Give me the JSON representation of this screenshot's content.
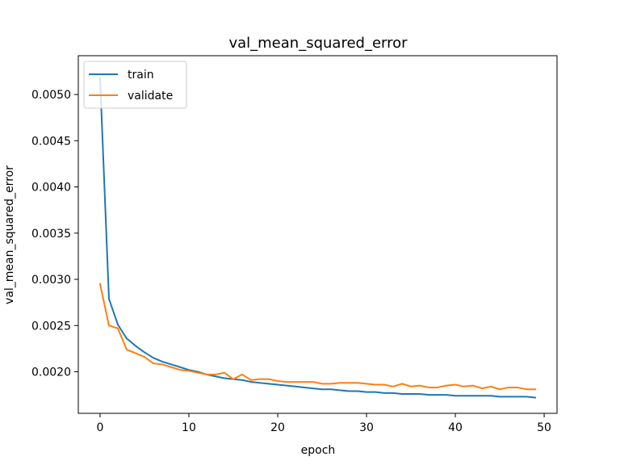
{
  "chart_data": {
    "type": "line",
    "title": "val_mean_squared_error",
    "xlabel": "epoch",
    "ylabel": "val_mean_squared_error",
    "xlim": [
      -2.45,
      51.45
    ],
    "ylim": [
      0.00155,
      0.00542
    ],
    "xticks": [
      0,
      10,
      20,
      30,
      40,
      50
    ],
    "yticks": [
      0.002,
      0.0025,
      0.003,
      0.0035,
      0.004,
      0.0045,
      0.005
    ],
    "ytick_labels": [
      "0.0020",
      "0.0025",
      "0.0030",
      "0.0035",
      "0.0040",
      "0.0045",
      "0.0050"
    ],
    "grid": false,
    "legend_position": "upper left",
    "x": [
      0,
      1,
      2,
      3,
      4,
      5,
      6,
      7,
      8,
      9,
      10,
      11,
      12,
      13,
      14,
      15,
      16,
      17,
      18,
      19,
      20,
      21,
      22,
      23,
      24,
      25,
      26,
      27,
      28,
      29,
      30,
      31,
      32,
      33,
      34,
      35,
      36,
      37,
      38,
      39,
      40,
      41,
      42,
      43,
      44,
      45,
      46,
      47,
      48,
      49
    ],
    "series": [
      {
        "name": "train",
        "color": "#1f77b4",
        "values": [
          0.00518,
          0.00279,
          0.00251,
          0.00236,
          0.00228,
          0.00221,
          0.00215,
          0.00211,
          0.00208,
          0.00205,
          0.00202,
          0.002,
          0.00197,
          0.00195,
          0.00193,
          0.00192,
          0.00191,
          0.00189,
          0.00188,
          0.00187,
          0.00186,
          0.00185,
          0.00184,
          0.00183,
          0.00182,
          0.00181,
          0.00181,
          0.0018,
          0.00179,
          0.00179,
          0.00178,
          0.00178,
          0.00177,
          0.00177,
          0.00176,
          0.00176,
          0.00176,
          0.00175,
          0.00175,
          0.00175,
          0.00174,
          0.00174,
          0.00174,
          0.00174,
          0.00174,
          0.00173,
          0.00173,
          0.00173,
          0.00173,
          0.00172
        ]
      },
      {
        "name": "validate",
        "color": "#ff7f0e",
        "values": [
          0.00295,
          0.0025,
          0.00247,
          0.00224,
          0.0022,
          0.00216,
          0.00209,
          0.00208,
          0.00205,
          0.00202,
          0.00201,
          0.00199,
          0.00197,
          0.00197,
          0.00199,
          0.00192,
          0.00197,
          0.00191,
          0.00192,
          0.00192,
          0.0019,
          0.00189,
          0.00189,
          0.00189,
          0.00189,
          0.00187,
          0.00187,
          0.00188,
          0.00188,
          0.00188,
          0.00187,
          0.00186,
          0.00186,
          0.00184,
          0.00187,
          0.00184,
          0.00185,
          0.00183,
          0.00183,
          0.00185,
          0.00186,
          0.00184,
          0.00185,
          0.00182,
          0.00184,
          0.00181,
          0.00183,
          0.00183,
          0.00181,
          0.00181
        ]
      }
    ]
  }
}
